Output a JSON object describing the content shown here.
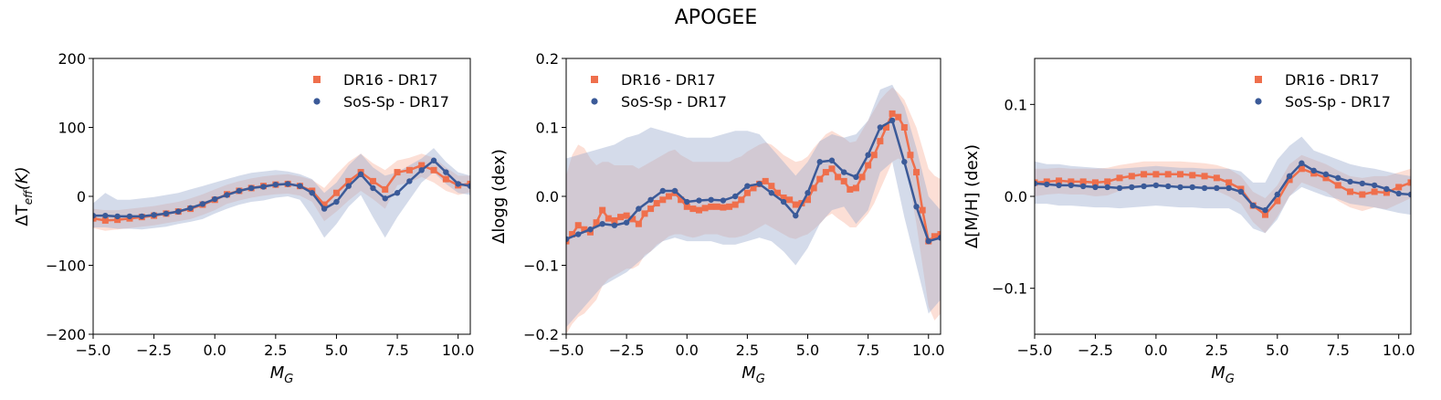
{
  "title": "APOGEE",
  "colors": {
    "dr16": "#ef6f4c",
    "dr16_band": "#f9b9a5",
    "sos": "#3b5a98",
    "sos_band": "#9fb0d0"
  },
  "chart_data": [
    {
      "type": "line",
      "xlabel_main": "M",
      "xlabel_sub": "G",
      "ylabel_parts": [
        "ΔT",
        "eff",
        "(K)"
      ],
      "ylabel": "ΔT_eff(K)",
      "xlim": [
        -5,
        10.5
      ],
      "ylim": [
        -200,
        200
      ],
      "xticks": [
        -5,
        -2.5,
        0,
        2.5,
        5,
        7.5,
        10
      ],
      "xtick_labels": [
        "−5.0",
        "−2.5",
        "0.0",
        "2.5",
        "5.0",
        "7.5",
        "10.0"
      ],
      "yticks": [
        -200,
        -100,
        0,
        100,
        200
      ],
      "ytick_labels": [
        "−200",
        "−100",
        "0",
        "100",
        "200"
      ],
      "legend_position": "top-right",
      "series": [
        {
          "name": "DR16 - DR17",
          "marker": "square",
          "x": [
            -5,
            -4.5,
            -4,
            -3.5,
            -3,
            -2.5,
            -2,
            -1.5,
            -1,
            -0.5,
            0,
            0.5,
            1,
            1.5,
            2,
            2.5,
            3,
            3.5,
            4,
            4.5,
            5,
            5.5,
            6,
            6.5,
            7,
            7.5,
            8,
            8.5,
            9,
            9.5,
            10,
            10.5
          ],
          "y": [
            -32,
            -35,
            -34,
            -32,
            -30,
            -28,
            -25,
            -22,
            -18,
            -12,
            -5,
            3,
            8,
            12,
            15,
            17,
            18,
            15,
            8,
            -12,
            5,
            22,
            35,
            22,
            10,
            35,
            38,
            45,
            38,
            25,
            16,
            18
          ],
          "band_upper": [
            -18,
            -20,
            -20,
            -18,
            -16,
            -14,
            -11,
            -8,
            -3,
            3,
            10,
            17,
            22,
            26,
            29,
            31,
            32,
            29,
            24,
            12,
            32,
            50,
            62,
            48,
            38,
            52,
            56,
            62,
            56,
            42,
            30,
            30
          ],
          "band_lower": [
            -46,
            -50,
            -48,
            -46,
            -44,
            -42,
            -39,
            -36,
            -33,
            -27,
            -20,
            -11,
            -6,
            -2,
            1,
            3,
            4,
            1,
            -8,
            -36,
            -22,
            -6,
            8,
            -4,
            -18,
            16,
            20,
            28,
            20,
            8,
            2,
            6
          ]
        },
        {
          "name": "SoS-Sp - DR17",
          "marker": "circle",
          "x": [
            -5,
            -4.5,
            -4,
            -3.5,
            -3,
            -2.5,
            -2,
            -1.5,
            -1,
            -0.5,
            0,
            0.5,
            1,
            1.5,
            2,
            2.5,
            3,
            3.5,
            4,
            4.5,
            5,
            5.5,
            6,
            6.5,
            7,
            7.5,
            8,
            8.5,
            9,
            9.5,
            10,
            10.5
          ],
          "y": [
            -28,
            -28,
            -29,
            -29,
            -29,
            -27,
            -25,
            -22,
            -17,
            -11,
            -4,
            2,
            8,
            12,
            14,
            17,
            18,
            15,
            5,
            -18,
            -8,
            15,
            32,
            12,
            -3,
            5,
            22,
            38,
            52,
            35,
            18,
            15
          ],
          "band_upper": [
            -10,
            5,
            -5,
            -5,
            -3,
            -1,
            2,
            5,
            10,
            15,
            20,
            25,
            30,
            34,
            36,
            38,
            36,
            32,
            25,
            5,
            20,
            45,
            62,
            42,
            30,
            35,
            45,
            55,
            70,
            50,
            35,
            30
          ],
          "band_lower": [
            -45,
            -45,
            -47,
            -47,
            -48,
            -46,
            -44,
            -40,
            -37,
            -33,
            -25,
            -18,
            -12,
            -8,
            -6,
            -2,
            0,
            -5,
            -30,
            -60,
            -40,
            -15,
            2,
            -30,
            -60,
            -30,
            -5,
            20,
            35,
            18,
            5,
            2
          ]
        }
      ]
    },
    {
      "type": "line",
      "xlabel_main": "M",
      "xlabel_sub": "G",
      "ylabel": "Δlogg (dex)",
      "xlim": [
        -5,
        10.5
      ],
      "ylim": [
        -0.2,
        0.2
      ],
      "xticks": [
        -5,
        -2.5,
        0,
        2.5,
        5,
        7.5,
        10
      ],
      "xtick_labels": [
        "−5.0",
        "−2.5",
        "0.0",
        "2.5",
        "5.0",
        "7.5",
        "10.0"
      ],
      "yticks": [
        -0.2,
        -0.1,
        0,
        0.1,
        0.2
      ],
      "ytick_labels": [
        "−0.2",
        "−0.1",
        "0.0",
        "0.1",
        "0.2"
      ],
      "legend_position": "top-left",
      "series": [
        {
          "name": "DR16 - DR17",
          "marker": "square",
          "x": [
            -5,
            -4.75,
            -4.5,
            -4.25,
            -4,
            -3.75,
            -3.5,
            -3.25,
            -3,
            -2.75,
            -2.5,
            -2.25,
            -2,
            -1.75,
            -1.5,
            -1.25,
            -1,
            -0.75,
            -0.5,
            -0.25,
            0,
            0.25,
            0.5,
            0.75,
            1,
            1.25,
            1.5,
            1.75,
            2,
            2.25,
            2.5,
            2.75,
            3,
            3.25,
            3.5,
            3.75,
            4,
            4.25,
            4.5,
            4.75,
            5,
            5.25,
            5.5,
            5.75,
            6,
            6.25,
            6.5,
            6.75,
            7,
            7.25,
            7.5,
            7.75,
            8,
            8.25,
            8.5,
            8.75,
            9,
            9.25,
            9.5,
            9.75,
            10,
            10.25,
            10.5
          ],
          "y": [
            -0.065,
            -0.055,
            -0.042,
            -0.048,
            -0.052,
            -0.038,
            -0.02,
            -0.032,
            -0.035,
            -0.03,
            -0.028,
            -0.033,
            -0.04,
            -0.025,
            -0.018,
            -0.01,
            -0.005,
            0.0,
            0.005,
            -0.005,
            -0.015,
            -0.018,
            -0.02,
            -0.017,
            -0.015,
            -0.015,
            -0.016,
            -0.015,
            -0.012,
            -0.005,
            0.005,
            0.012,
            0.018,
            0.022,
            0.015,
            0.005,
            -0.002,
            -0.005,
            -0.012,
            -0.01,
            -0.005,
            0.012,
            0.025,
            0.035,
            0.04,
            0.028,
            0.022,
            0.01,
            0.012,
            0.028,
            0.045,
            0.06,
            0.08,
            0.1,
            0.12,
            0.115,
            0.1,
            0.06,
            0.035,
            -0.02,
            -0.065,
            -0.058,
            -0.055
          ],
          "band_upper": [
            0.03,
            0.06,
            0.075,
            0.07,
            0.055,
            0.045,
            0.05,
            0.05,
            0.045,
            0.045,
            0.045,
            0.045,
            0.04,
            0.045,
            0.05,
            0.055,
            0.06,
            0.065,
            0.068,
            0.06,
            0.055,
            0.05,
            0.05,
            0.05,
            0.05,
            0.05,
            0.05,
            0.05,
            0.055,
            0.058,
            0.065,
            0.07,
            0.075,
            0.078,
            0.075,
            0.068,
            0.06,
            0.055,
            0.05,
            0.052,
            0.058,
            0.07,
            0.08,
            0.09,
            0.095,
            0.09,
            0.085,
            0.078,
            0.08,
            0.095,
            0.11,
            0.125,
            0.14,
            0.15,
            0.158,
            0.15,
            0.14,
            0.12,
            0.1,
            0.07,
            0.04,
            0.03,
            0.025
          ],
          "band_lower": [
            -0.2,
            -0.185,
            -0.175,
            -0.17,
            -0.16,
            -0.15,
            -0.13,
            -0.12,
            -0.115,
            -0.11,
            -0.105,
            -0.105,
            -0.1,
            -0.085,
            -0.08,
            -0.07,
            -0.065,
            -0.058,
            -0.055,
            -0.055,
            -0.058,
            -0.06,
            -0.058,
            -0.055,
            -0.055,
            -0.055,
            -0.058,
            -0.06,
            -0.06,
            -0.058,
            -0.055,
            -0.05,
            -0.045,
            -0.04,
            -0.045,
            -0.05,
            -0.055,
            -0.06,
            -0.062,
            -0.058,
            -0.055,
            -0.048,
            -0.04,
            -0.03,
            -0.025,
            -0.032,
            -0.038,
            -0.045,
            -0.045,
            -0.035,
            -0.025,
            -0.01,
            0.01,
            0.03,
            0.05,
            0.055,
            0.05,
            0.01,
            -0.04,
            -0.1,
            -0.16,
            -0.18,
            -0.17
          ]
        },
        {
          "name": "SoS-Sp - DR17",
          "marker": "circle",
          "x": [
            -5,
            -4.5,
            -4,
            -3.5,
            -3,
            -2.5,
            -2,
            -1.5,
            -1,
            -0.5,
            0,
            0.5,
            1,
            1.5,
            2,
            2.5,
            3,
            3.5,
            4,
            4.5,
            5,
            5.5,
            6,
            6.5,
            7,
            7.5,
            8,
            8.5,
            9,
            9.5,
            10,
            10.5
          ],
          "y": [
            -0.062,
            -0.055,
            -0.048,
            -0.04,
            -0.042,
            -0.038,
            -0.018,
            -0.005,
            0.008,
            0.008,
            -0.008,
            -0.006,
            -0.005,
            -0.006,
            0.0,
            0.015,
            0.018,
            0.005,
            -0.008,
            -0.028,
            0.005,
            0.05,
            0.052,
            0.035,
            0.028,
            0.06,
            0.1,
            0.11,
            0.05,
            -0.015,
            -0.065,
            -0.06
          ],
          "band_upper": [
            0.055,
            0.06,
            0.065,
            0.07,
            0.075,
            0.085,
            0.09,
            0.1,
            0.095,
            0.09,
            0.085,
            0.085,
            0.085,
            0.09,
            0.095,
            0.095,
            0.09,
            0.07,
            0.05,
            0.03,
            0.05,
            0.08,
            0.09,
            0.085,
            0.09,
            0.11,
            0.155,
            0.162,
            0.13,
            0.07,
            0.0,
            -0.02
          ],
          "band_lower": [
            -0.19,
            -0.17,
            -0.15,
            -0.13,
            -0.12,
            -0.11,
            -0.095,
            -0.08,
            -0.065,
            -0.06,
            -0.065,
            -0.065,
            -0.065,
            -0.07,
            -0.07,
            -0.065,
            -0.06,
            -0.065,
            -0.08,
            -0.1,
            -0.075,
            -0.04,
            -0.02,
            -0.015,
            -0.04,
            -0.02,
            0.035,
            0.05,
            -0.03,
            -0.1,
            -0.17,
            -0.15
          ]
        }
      ]
    },
    {
      "type": "line",
      "xlabel_main": "M",
      "xlabel_sub": "G",
      "ylabel": "Δ[M/H] (dex)",
      "xlim": [
        -5,
        10.5
      ],
      "ylim": [
        -0.15,
        0.15
      ],
      "xticks": [
        -5,
        -2.5,
        0,
        2.5,
        5,
        7.5,
        10
      ],
      "xtick_labels": [
        "−5.0",
        "−2.5",
        "0.0",
        "2.5",
        "5.0",
        "7.5",
        "10.0"
      ],
      "yticks": [
        -0.1,
        0,
        0.1
      ],
      "ytick_labels": [
        "−0.1",
        "0.0",
        "0.1"
      ],
      "legend_position": "top-right",
      "series": [
        {
          "name": "DR16 - DR17",
          "marker": "square",
          "x": [
            -5,
            -4.5,
            -4,
            -3.5,
            -3,
            -2.5,
            -2,
            -1.5,
            -1,
            -0.5,
            0,
            0.5,
            1,
            1.5,
            2,
            2.5,
            3,
            3.5,
            4,
            4.5,
            5,
            5.5,
            6,
            6.5,
            7,
            7.5,
            8,
            8.5,
            9,
            9.5,
            10,
            10.5
          ],
          "y": [
            0.015,
            0.016,
            0.017,
            0.016,
            0.016,
            0.015,
            0.016,
            0.02,
            0.022,
            0.024,
            0.024,
            0.024,
            0.024,
            0.023,
            0.022,
            0.02,
            0.015,
            0.008,
            -0.01,
            -0.02,
            -0.005,
            0.018,
            0.03,
            0.025,
            0.02,
            0.012,
            0.005,
            0.002,
            0.005,
            0.004,
            0.01,
            0.015
          ],
          "band_upper": [
            0.03,
            0.03,
            0.031,
            0.03,
            0.03,
            0.03,
            0.031,
            0.034,
            0.036,
            0.038,
            0.038,
            0.038,
            0.038,
            0.037,
            0.036,
            0.034,
            0.03,
            0.022,
            0.005,
            -0.002,
            0.012,
            0.035,
            0.045,
            0.04,
            0.035,
            0.028,
            0.022,
            0.02,
            0.022,
            0.022,
            0.026,
            0.03
          ],
          "band_lower": [
            0.0,
            0.002,
            0.003,
            0.002,
            0.002,
            0.0,
            0.001,
            0.006,
            0.008,
            0.01,
            0.01,
            0.01,
            0.01,
            0.009,
            0.008,
            0.006,
            0.0,
            -0.008,
            -0.028,
            -0.04,
            -0.022,
            0.0,
            0.015,
            0.01,
            0.005,
            -0.005,
            -0.012,
            -0.016,
            -0.012,
            -0.014,
            -0.008,
            -0.002
          ]
        },
        {
          "name": "SoS-Sp - DR17",
          "marker": "circle",
          "x": [
            -5,
            -4.5,
            -4,
            -3.5,
            -3,
            -2.5,
            -2,
            -1.5,
            -1,
            -0.5,
            0,
            0.5,
            1,
            1.5,
            2,
            2.5,
            3,
            3.5,
            4,
            4.5,
            5,
            5.5,
            6,
            6.5,
            7,
            7.5,
            8,
            8.5,
            9,
            9.5,
            10,
            10.5
          ],
          "y": [
            0.014,
            0.013,
            0.012,
            0.012,
            0.011,
            0.01,
            0.01,
            0.009,
            0.01,
            0.011,
            0.012,
            0.011,
            0.01,
            0.01,
            0.009,
            0.009,
            0.009,
            0.005,
            -0.01,
            -0.015,
            0.002,
            0.022,
            0.036,
            0.028,
            0.024,
            0.02,
            0.016,
            0.014,
            0.012,
            0.008,
            0.003,
            0.002
          ],
          "band_upper": [
            0.038,
            0.035,
            0.035,
            0.033,
            0.032,
            0.031,
            0.03,
            0.03,
            0.031,
            0.032,
            0.033,
            0.032,
            0.031,
            0.031,
            0.03,
            0.03,
            0.03,
            0.027,
            0.015,
            0.015,
            0.04,
            0.055,
            0.065,
            0.05,
            0.045,
            0.04,
            0.035,
            0.032,
            0.03,
            0.027,
            0.024,
            0.022
          ],
          "band_lower": [
            -0.008,
            -0.008,
            -0.01,
            -0.01,
            -0.011,
            -0.012,
            -0.012,
            -0.013,
            -0.012,
            -0.011,
            -0.01,
            -0.011,
            -0.012,
            -0.012,
            -0.013,
            -0.013,
            -0.013,
            -0.02,
            -0.035,
            -0.04,
            -0.025,
            0.0,
            0.01,
            0.005,
            0.0,
            -0.003,
            -0.008,
            -0.01,
            -0.012,
            -0.015,
            -0.018,
            -0.02
          ]
        }
      ]
    }
  ]
}
